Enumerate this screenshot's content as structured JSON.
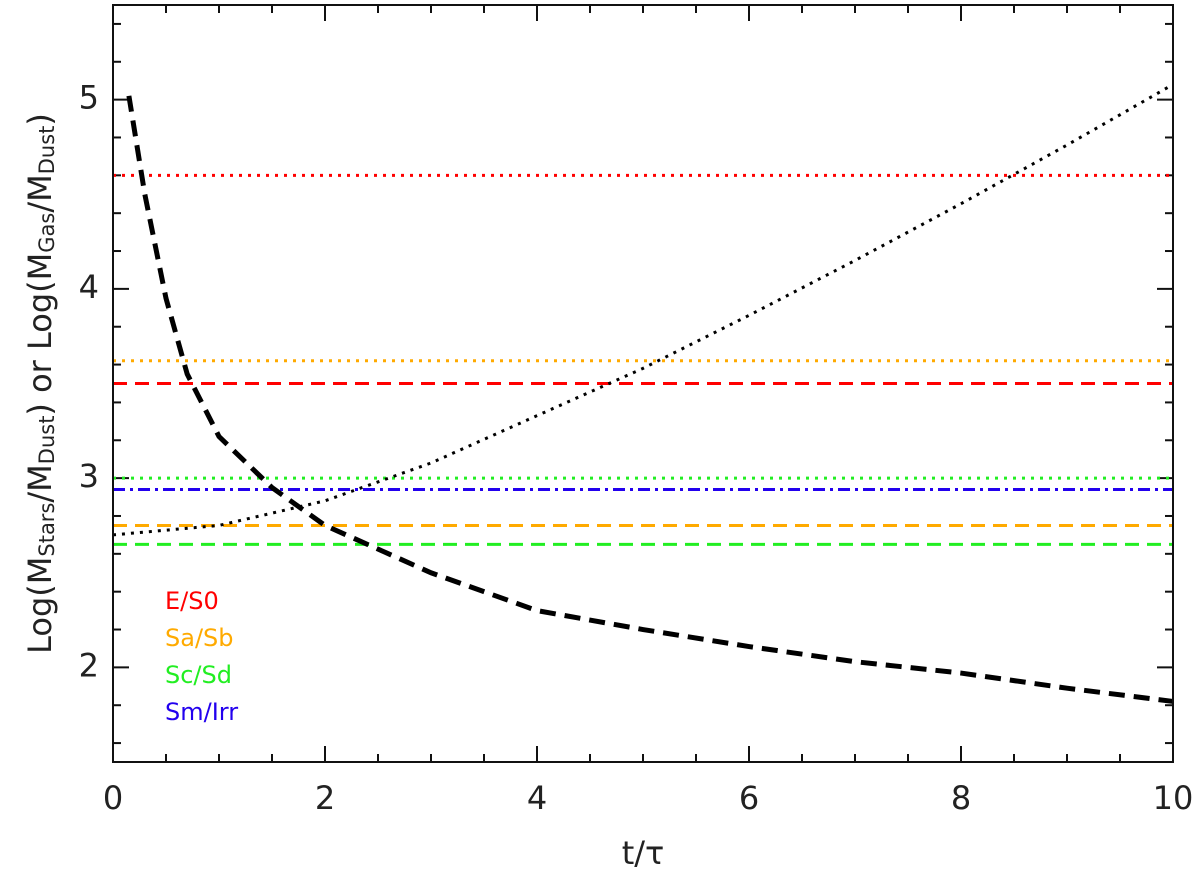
{
  "chart_data": {
    "type": "line",
    "xlabel": "t/τ",
    "ylabel_parts": [
      "Log(M",
      "Stars",
      "/M",
      "Dust",
      ")  or  Log(M",
      "Gas",
      "/M",
      "Dust",
      ")"
    ],
    "xlim": [
      0,
      10
    ],
    "ylim": [
      1.5,
      5.5
    ],
    "xticks": [
      0,
      2,
      4,
      6,
      8,
      10
    ],
    "yticks": [
      2,
      3,
      4,
      5
    ],
    "xminorticks": [
      0.5,
      1,
      1.5,
      2.5,
      3,
      3.5,
      4.5,
      5,
      5.5,
      6.5,
      7,
      7.5,
      8.5,
      9,
      9.5
    ],
    "yminorticks": [
      1.6,
      1.8,
      2.2,
      2.4,
      2.6,
      2.8,
      3.2,
      3.4,
      3.6,
      3.8,
      4.2,
      4.4,
      4.6,
      4.8,
      5.2,
      5.4
    ],
    "series": [
      {
        "color": "#ff0000",
        "style": "dotted",
        "x": [
          0,
          10
        ],
        "values": [
          4.6,
          4.6
        ]
      },
      {
        "color": "#ffaa00",
        "style": "dotted",
        "x": [
          0,
          10
        ],
        "values": [
          3.62,
          3.62
        ]
      },
      {
        "color": "#ff0000",
        "style": "dashed",
        "x": [
          0,
          10
        ],
        "values": [
          3.5,
          3.5
        ]
      },
      {
        "color": "#22ee22",
        "style": "dotted",
        "x": [
          0,
          10
        ],
        "values": [
          3.0,
          3.0
        ]
      },
      {
        "color": "#2200ee",
        "style": "dashdot",
        "x": [
          0,
          10
        ],
        "values": [
          2.94,
          2.94
        ]
      },
      {
        "color": "#ffaa00",
        "style": "dashed",
        "x": [
          0,
          10
        ],
        "values": [
          2.75,
          2.75
        ]
      },
      {
        "color": "#22ee22",
        "style": "dashed",
        "x": [
          0,
          10
        ],
        "values": [
          2.65,
          2.65
        ]
      },
      {
        "color": "#000000",
        "style": "thickdashed",
        "x": [
          0.15,
          0.3,
          0.5,
          0.7,
          1,
          1.5,
          2,
          3,
          4,
          5,
          6,
          7,
          8,
          9,
          10
        ],
        "values": [
          5.02,
          4.5,
          3.95,
          3.55,
          3.22,
          2.95,
          2.75,
          2.5,
          2.3,
          2.2,
          2.11,
          2.03,
          1.97,
          1.89,
          1.82
        ]
      },
      {
        "color": "#000000",
        "style": "dotted",
        "x": [
          0,
          1,
          2,
          3,
          4,
          5,
          6,
          7,
          8,
          9,
          10
        ],
        "values": [
          2.7,
          2.75,
          2.88,
          3.08,
          3.33,
          3.58,
          3.86,
          4.15,
          4.45,
          4.76,
          5.08
        ]
      }
    ],
    "legend": [
      {
        "name": "E/S0",
        "color": "#ff0000"
      },
      {
        "name": "Sa/Sb",
        "color": "#ffaa00"
      },
      {
        "name": "Sc/Sd",
        "color": "#22ee22"
      },
      {
        "name": "Sm/Irr",
        "color": "#2200ee"
      }
    ]
  }
}
